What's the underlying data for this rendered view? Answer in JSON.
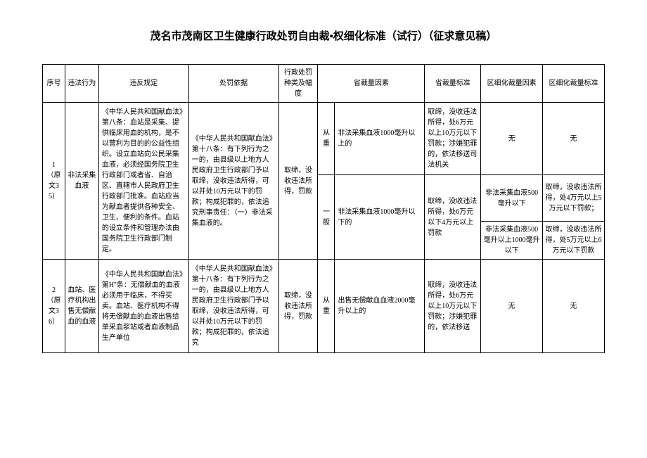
{
  "title": "茂名市茂南区卫生健康行政处罚自由裁▪权细化标准（试行）（征求意见稿）",
  "title_fontsize": "15px",
  "cell_fontsize": "10px",
  "headers": {
    "seq": "序号",
    "act": "违法行为",
    "reg": "违反规定",
    "basis": "处罚依据",
    "type": "行政处罚种类及幅度",
    "pfac": "省裁量因素",
    "pstd": "省裁量标准",
    "dfac": "区细化裁量因素",
    "dstd": "区细化裁量标准"
  },
  "levels": {
    "heavy": "从重",
    "light": "一般"
  },
  "none": "无",
  "rows": [
    {
      "seq": "1\n\n（原文35）",
      "act": "非法采集血液",
      "reg": "《中华人民共和国献血法》第八条：血站是采集、提供临床用血的机构，是不以营利为目的的公益性组织。设立血站向公民采集血液，必须经国务院卫生行政部门或者省、自治区、直辖市人民政府卫生行政部门批准。血站应当为献血者提供各种安全、卫生、便利的条件。血站的设立条件和管理办法由国务院卫生行政部门制定。",
      "basis": "《中华人民共和国献血法》第十八条：有下列行为之一的，由县级以上地方人民政府卫生行政部门予以取缔，没收违法所得，可以并处10万元以下的罚款；构成犯罪的，依法追究刑事责任：（一）非法采集血液的。",
      "type": "取缔，没收违法所得，罚款",
      "heavy": {
        "pfac": "非法采集血液1000毫升以上的",
        "pstd": "取缔，没收违法所得，处6万元以上10万元以下罚款；涉嫌犯罪的，依法移送司法机关",
        "dfac": "无",
        "dstd": "无"
      },
      "light": {
        "pfac": "非法采集血液1000毫升以下的",
        "pstd": "取缔，没收违法所得，处6万元以下4万元以上罚款",
        "sub": [
          {
            "dfac": "非法采集血液500毫升以下",
            "dstd": "取缔，没收违法所得，处4万元以上5万元以下罚款；"
          },
          {
            "dfac": "非法采集血液500毫升以上1000毫升以下",
            "dstd": "取缔，没收违法所得，处5万元以上6万元以下罚款"
          }
        ]
      }
    },
    {
      "seq": "2\n\n（原文36）",
      "act": "血站、医疗机构出售无偿献血的血液",
      "reg": "《中华人民共和国献血法》第H''条：无偿献血的血液必须用于临床，不得买卖。血站、医疗机构不得将无偿献血的血液出售给单采血浆站或者血液制品生产单位",
      "basis": "《中华人民共和国献血法》第十八条：有下列行为之一的，由县级以上地方人民政府卫生行政部门予以取缔，没收违法所得，可以并处10万元以下的罚款；构成犯罪的，依法追究",
      "type": "取缔，没收违法所得，罚款",
      "heavy": {
        "pfac": "出售无偿献血血液2000毫升以上的",
        "pstd": "取缔，没收违法所得，处6万元以上10万元以下罚款；涉嫌犯罪的，依法移送",
        "dfac": "无",
        "dstd": "无"
      }
    }
  ]
}
